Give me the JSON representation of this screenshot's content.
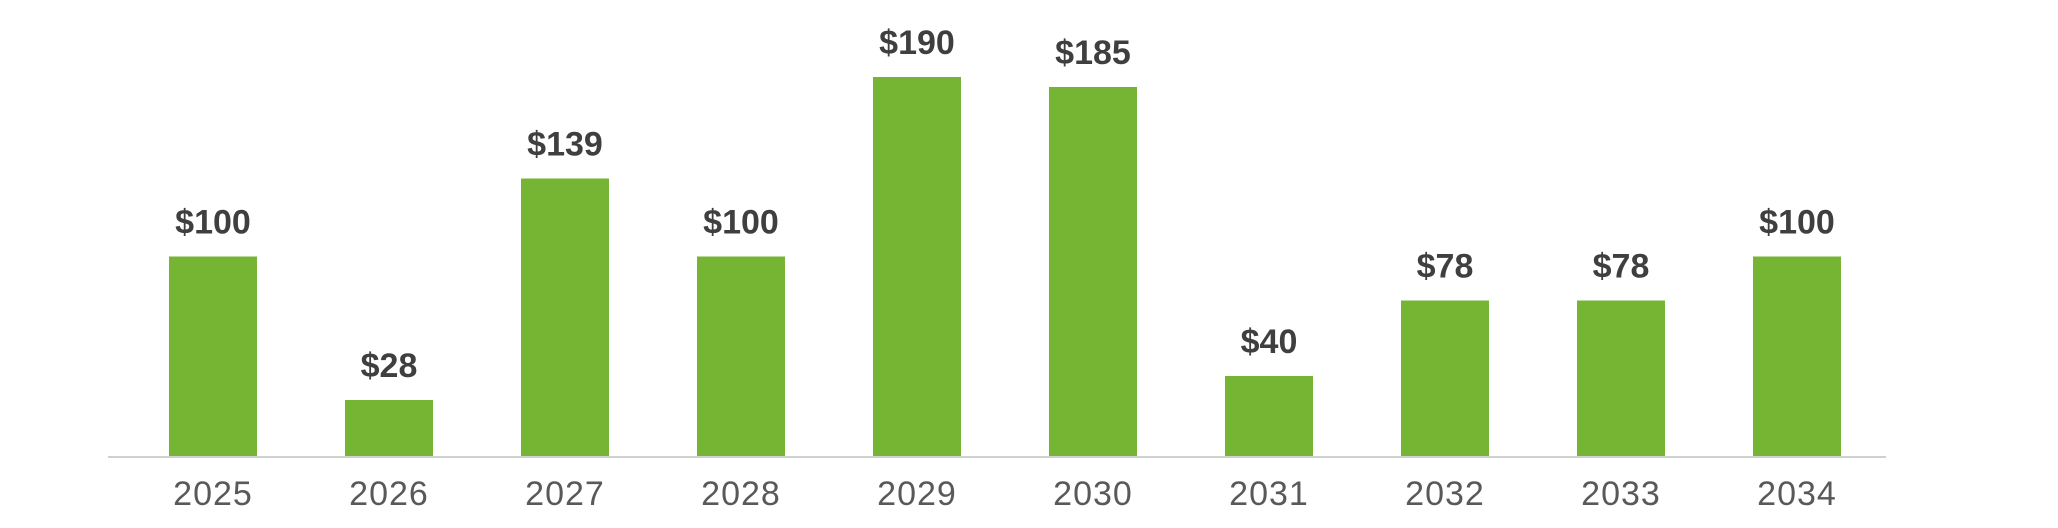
{
  "chart_data": {
    "type": "bar",
    "categories": [
      "2025",
      "2026",
      "2027",
      "2028",
      "2029",
      "2030",
      "2031",
      "2032",
      "2033",
      "2034"
    ],
    "values": [
      100,
      28,
      139,
      100,
      190,
      185,
      40,
      78,
      78,
      100
    ],
    "data_labels": [
      "$100",
      "$28",
      "$139",
      "$100",
      "$190",
      "$185",
      "$40",
      "$78",
      "$78",
      "$100"
    ],
    "title": "",
    "xlabel": "",
    "ylabel": "",
    "ylim": [
      0,
      190
    ],
    "grid": false,
    "legend": "none"
  },
  "colors": {
    "bar": "#76b534",
    "data_label": "#3f3f3f",
    "tick_label": "#595959",
    "axis": "#d0d0d0"
  }
}
